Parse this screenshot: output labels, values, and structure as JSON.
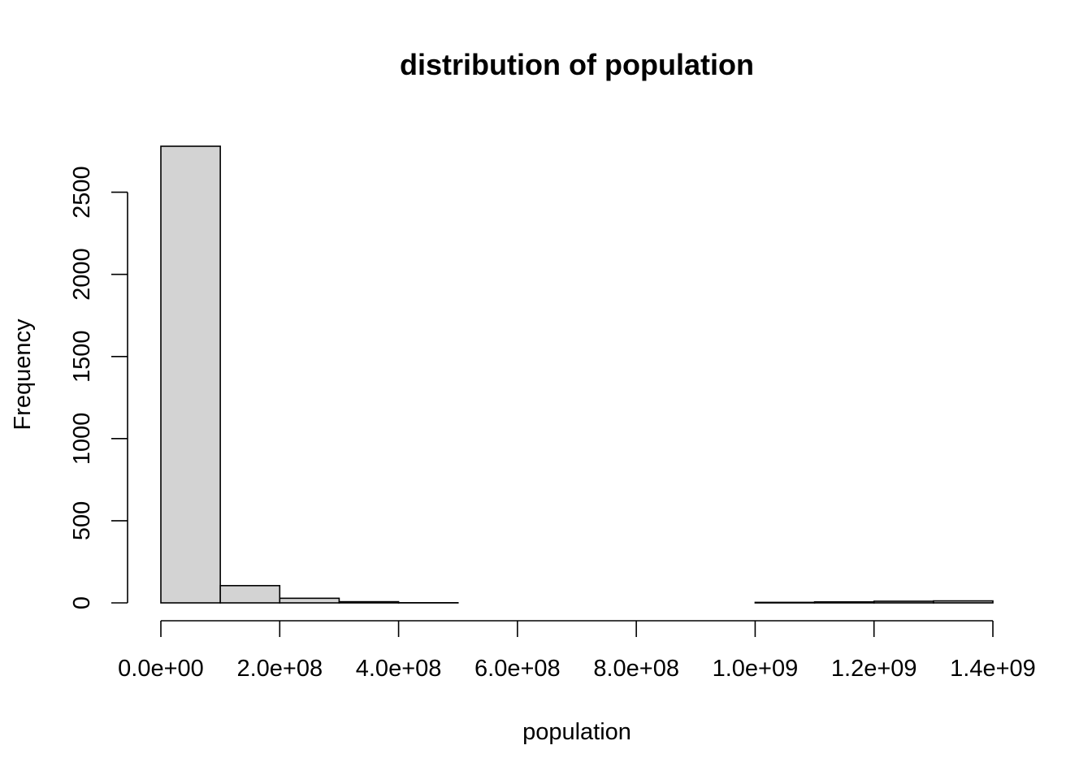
{
  "chart_data": {
    "type": "bar",
    "subtype": "histogram",
    "title": "distribution of population",
    "xlabel": "population",
    "ylabel": "Frequency",
    "bin_edges": [
      0,
      100000000,
      200000000,
      300000000,
      400000000,
      500000000,
      600000000,
      700000000,
      800000000,
      900000000,
      1000000000,
      1100000000,
      1200000000,
      1300000000,
      1400000000
    ],
    "values": [
      2780,
      105,
      28,
      7,
      1,
      0,
      0,
      0,
      0,
      0,
      3,
      6,
      10,
      12
    ],
    "xlim": [
      0,
      1400000000
    ],
    "ylim": [
      0,
      2780
    ],
    "x_ticks": [
      0,
      200000000,
      400000000,
      600000000,
      800000000,
      1000000000,
      1200000000,
      1400000000
    ],
    "x_tick_labels": [
      "0.0e+00",
      "2.0e+08",
      "4.0e+08",
      "6.0e+08",
      "8.0e+08",
      "1.0e+09",
      "1.2e+09",
      "1.4e+09"
    ],
    "y_ticks": [
      0,
      500,
      1000,
      1500,
      2000,
      2500
    ],
    "y_tick_labels": [
      "0",
      "500",
      "1000",
      "1500",
      "2000",
      "2500"
    ],
    "bar_fill": "#d3d3d3",
    "bar_stroke": "#000000",
    "grid": false,
    "legend": "none"
  }
}
